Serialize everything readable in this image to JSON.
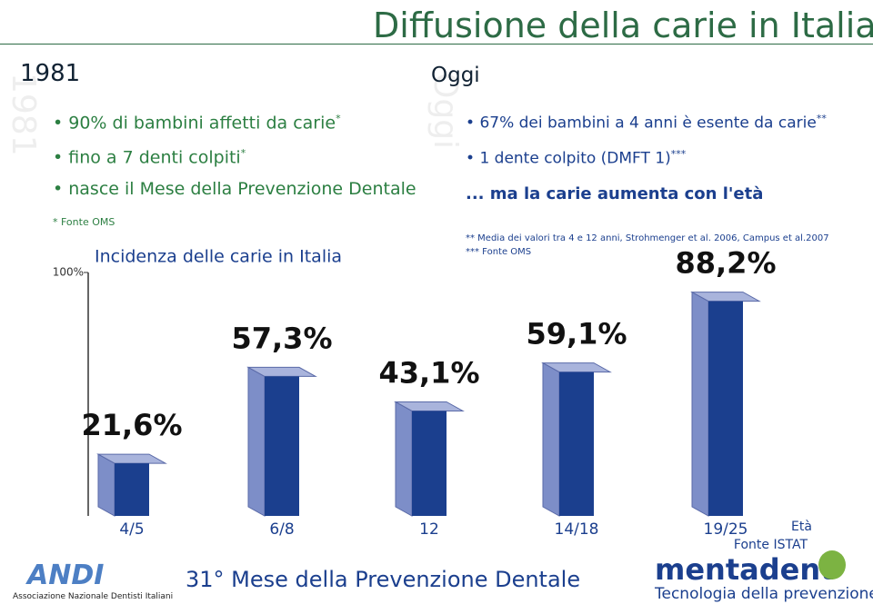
{
  "title": "Diffusione della carie in Italia",
  "left": {
    "heading": "1981",
    "bullets": [
      {
        "text": "90% di bambini affetti da carie",
        "note": "*"
      },
      {
        "text": "fino a 7 denti colpiti",
        "note": "*"
      },
      {
        "text": "nasce il Mese della Prevenzione Dentale"
      }
    ],
    "footnote": "* Fonte OMS"
  },
  "right": {
    "heading": "Oggi",
    "bullets": [
      {
        "text": "67% dei bambini a 4 anni è esente da carie",
        "note": "**"
      },
      {
        "text": "1 dente colpito (DMFT 1)",
        "note": "***"
      }
    ],
    "conclusion": "... ma la carie aumenta con l'età",
    "footnotes": [
      "** Media dei valori tra 4 e 12 anni, Strohmenger et al. 2006, Campus et al.2007",
      "*** Fonte OMS"
    ]
  },
  "chart_data": {
    "type": "bar",
    "title": "Incidenza delle carie in Italia",
    "categories": [
      "4/5",
      "6/8",
      "12",
      "14/18",
      "19/25"
    ],
    "values": [
      21.6,
      57.3,
      43.1,
      59.1,
      88.2
    ],
    "value_labels": [
      "21,6%",
      "57,3%",
      "43,1%",
      "59,1%",
      "88,2%"
    ],
    "color": "#1b3f8e",
    "side_color": "#7d8ec8",
    "ylim": [
      0,
      100
    ],
    "yticks": [
      {
        "value": 100,
        "label": "100%"
      }
    ],
    "x_label": "Età",
    "source": "Fonte ISTAT"
  },
  "footer": {
    "title": "31° Mese della Prevenzione Dentale",
    "andi": "ANDI",
    "andi_caption": "Associazione Nazionale Dentisti Italiani",
    "brand": "mentadent",
    "brand_tagline": "Tecnologia della prevenzione"
  }
}
